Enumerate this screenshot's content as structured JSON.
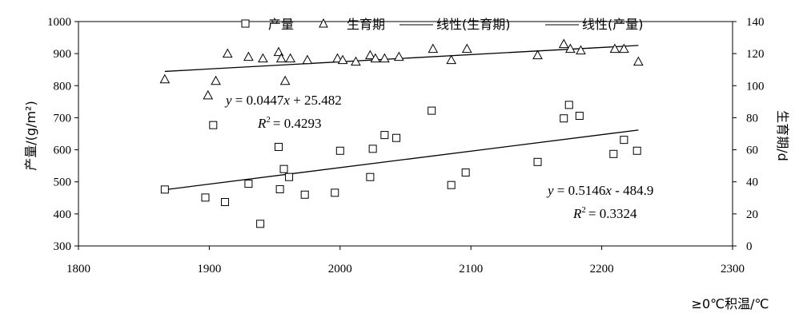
{
  "chart_data": {
    "type": "scatter",
    "title": "",
    "xlabel": "≥0℃积温/℃",
    "ylabel_left": "产量/(g/m²)",
    "ylabel_right": "生育期/d",
    "xlim": [
      1800,
      2300
    ],
    "xticks": [
      "1800",
      "1900",
      "2000",
      "2100",
      "2200",
      "2300"
    ],
    "ylim_left": [
      300,
      1000
    ],
    "yticks_left": [
      "300",
      "400",
      "500",
      "600",
      "700",
      "800",
      "900",
      "1000"
    ],
    "ylim_right": [
      0,
      140
    ],
    "yticks_right": [
      "0",
      "20",
      "40",
      "60",
      "80",
      "100",
      "120",
      "140"
    ],
    "legend": {
      "position": "top",
      "entries": [
        "产量",
        "生育期",
        "线性(生育期)",
        "线性(产量)"
      ]
    },
    "series": [
      {
        "name": "产量",
        "axis": "left",
        "marker": "square",
        "points": [
          {
            "x": 1866,
            "y": 476
          },
          {
            "x": 1897,
            "y": 451
          },
          {
            "x": 1903,
            "y": 677
          },
          {
            "x": 1912,
            "y": 437
          },
          {
            "x": 1930,
            "y": 494
          },
          {
            "x": 1939,
            "y": 369
          },
          {
            "x": 1953,
            "y": 609
          },
          {
            "x": 1954,
            "y": 477
          },
          {
            "x": 1957,
            "y": 540
          },
          {
            "x": 1961,
            "y": 515
          },
          {
            "x": 1973,
            "y": 460
          },
          {
            "x": 1996,
            "y": 466
          },
          {
            "x": 2000,
            "y": 597
          },
          {
            "x": 2023,
            "y": 515
          },
          {
            "x": 2025,
            "y": 603
          },
          {
            "x": 2034,
            "y": 646
          },
          {
            "x": 2043,
            "y": 637
          },
          {
            "x": 2070,
            "y": 722
          },
          {
            "x": 2085,
            "y": 490
          },
          {
            "x": 2096,
            "y": 529
          },
          {
            "x": 2151,
            "y": 562
          },
          {
            "x": 2171,
            "y": 698
          },
          {
            "x": 2175,
            "y": 740
          },
          {
            "x": 2183,
            "y": 706
          },
          {
            "x": 2209,
            "y": 587
          },
          {
            "x": 2217,
            "y": 631
          },
          {
            "x": 2227,
            "y": 597
          }
        ]
      },
      {
        "name": "生育期",
        "axis": "right",
        "marker": "triangle",
        "points": [
          {
            "x": 1866,
            "y": 104
          },
          {
            "x": 1899,
            "y": 94
          },
          {
            "x": 1905,
            "y": 103
          },
          {
            "x": 1914,
            "y": 120
          },
          {
            "x": 1930,
            "y": 118
          },
          {
            "x": 1941,
            "y": 117
          },
          {
            "x": 1953,
            "y": 121
          },
          {
            "x": 1955,
            "y": 117
          },
          {
            "x": 1958,
            "y": 103
          },
          {
            "x": 1962,
            "y": 117
          },
          {
            "x": 1975,
            "y": 116
          },
          {
            "x": 1998,
            "y": 117
          },
          {
            "x": 2002,
            "y": 116
          },
          {
            "x": 2012,
            "y": 115
          },
          {
            "x": 2023,
            "y": 119
          },
          {
            "x": 2027,
            "y": 117
          },
          {
            "x": 2034,
            "y": 117
          },
          {
            "x": 2045,
            "y": 118
          },
          {
            "x": 2071,
            "y": 123
          },
          {
            "x": 2085,
            "y": 116
          },
          {
            "x": 2097,
            "y": 123
          },
          {
            "x": 2151,
            "y": 119
          },
          {
            "x": 2171,
            "y": 126
          },
          {
            "x": 2176,
            "y": 123
          },
          {
            "x": 2184,
            "y": 122
          },
          {
            "x": 2210,
            "y": 123
          },
          {
            "x": 2217,
            "y": 123
          },
          {
            "x": 2228,
            "y": 115
          }
        ]
      }
    ],
    "trendlines": [
      {
        "name": "线性(生育期)",
        "axis": "right",
        "x_range": [
          1866,
          2228
        ],
        "y_range": [
          108.9,
          125.1
        ],
        "equation_prefix": "y",
        "equation_body": "= 0.0447",
        "equation_var": "x",
        "equation_tail": "+ 25.482",
        "r2_prefix": "R",
        "r2_sup": "2",
        "r2_value": "= 0.4293"
      },
      {
        "name": "线性(产量)",
        "axis": "left",
        "x_range": [
          1866,
          2228
        ],
        "y_range": [
          475.4,
          661.6
        ],
        "equation_prefix": "y",
        "equation_body": "= 0.5146",
        "equation_var": "x",
        "equation_tail": "- 484.9",
        "r2_prefix": "R",
        "r2_sup": "2",
        "r2_value": "= 0.3324"
      }
    ]
  }
}
